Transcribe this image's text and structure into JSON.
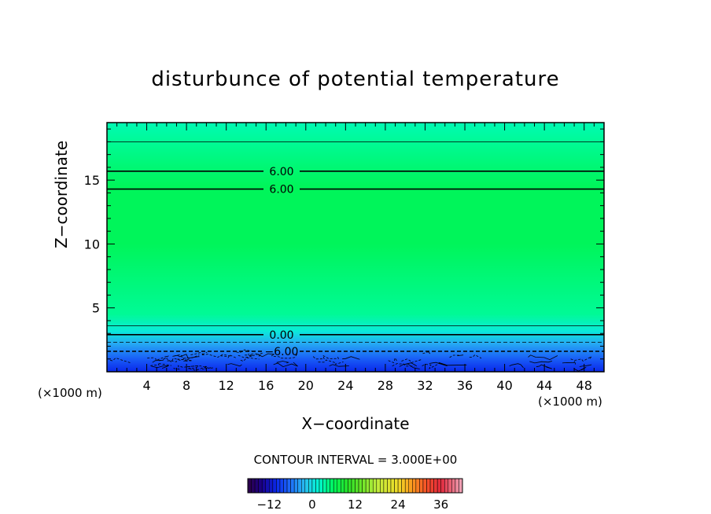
{
  "chart_data": {
    "type": "heatmap",
    "title": "disturbunce of potential temperature",
    "xlabel": "X−coordinate",
    "ylabel": "Z−coordinate",
    "x_unit_left": "(×1000 m)",
    "x_unit_right": "(×1000 m)",
    "xlim": [
      0,
      50
    ],
    "ylim": [
      0,
      19.5
    ],
    "x_ticks": [
      4,
      8,
      12,
      16,
      20,
      24,
      28,
      32,
      36,
      40,
      44,
      48
    ],
    "y_ticks": [
      5,
      10,
      15
    ],
    "grid": false,
    "contour_interval_text": "CONTOUR INTERVAL = 3.000E+00",
    "color_profile": [
      {
        "z": 0.0,
        "value": -10
      },
      {
        "z": 1.0,
        "value": -7
      },
      {
        "z": 2.2,
        "value": -3
      },
      {
        "z": 3.2,
        "value": 1
      },
      {
        "z": 4.5,
        "value": 4
      },
      {
        "z": 10.0,
        "value": 6
      },
      {
        "z": 14.5,
        "value": 6
      },
      {
        "z": 18.0,
        "value": 4
      },
      {
        "z": 19.5,
        "value": 3
      }
    ],
    "contour_lines": [
      {
        "z": 18.0,
        "style": "solid",
        "weight": "thin",
        "label": ""
      },
      {
        "z": 15.7,
        "style": "solid",
        "weight": "thick",
        "label": "6.00"
      },
      {
        "z": 14.3,
        "style": "solid",
        "weight": "thick",
        "label": "6.00"
      },
      {
        "z": 3.6,
        "style": "solid",
        "weight": "thin",
        "label": ""
      },
      {
        "z": 2.9,
        "style": "solid",
        "weight": "thick",
        "label": "0.00"
      },
      {
        "z": 2.3,
        "style": "dashed",
        "weight": "thin",
        "label": ""
      },
      {
        "z": 1.6,
        "style": "dashed",
        "weight": "thick",
        "label": "−6.00"
      }
    ],
    "colorbar": {
      "min": -18,
      "max": 42,
      "ticks": [
        -12,
        0,
        12,
        24,
        36
      ],
      "tick_labels": [
        "−12",
        "0",
        "12",
        "24",
        "36"
      ]
    }
  }
}
